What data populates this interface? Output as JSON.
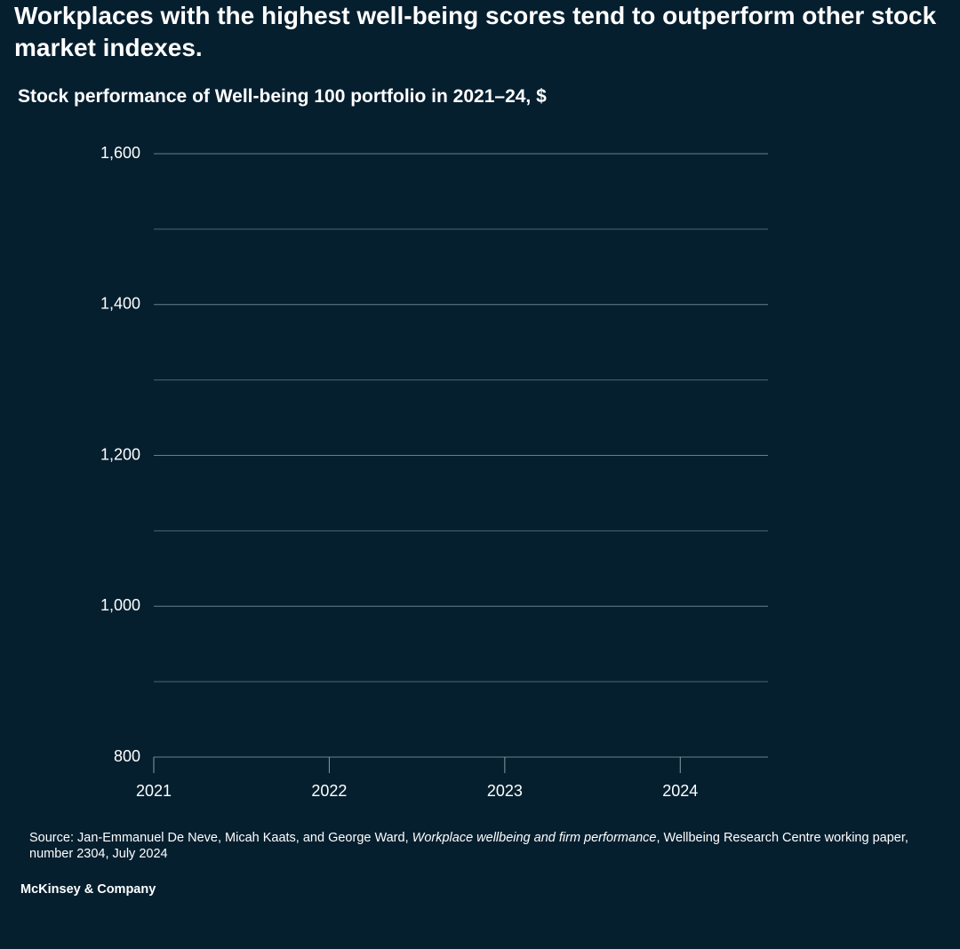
{
  "chart_data": {
    "type": "line",
    "title": "Workplaces with the highest well-being scores tend to outperform other stock market indexes.",
    "subtitle": "Stock performance of Well-being 100 portfolio in 2021–24, $",
    "xlim": [
      2021,
      2024.5
    ],
    "xticks": [
      2021,
      2022,
      2023,
      2024
    ],
    "ylim": [
      800,
      1600
    ],
    "yticks": [
      800,
      {
        "value": 1000,
        "label": "1,000"
      },
      {
        "value": 1200,
        "label": "1,200"
      },
      {
        "value": 1400,
        "label": "1,400"
      },
      {
        "value": 1600,
        "label": "1,600"
      }
    ],
    "minor_yticks": [
      900,
      1100,
      1300,
      1500
    ],
    "grid": true,
    "series": []
  },
  "source": {
    "before": "Source: Jan-Emmanuel De Neve, Micah Kaats, and George Ward, ",
    "italic": "Workplace wellbeing and firm performance",
    "after": ", Wellbeing Research Centre working paper, number 2304, July 2024"
  },
  "footer": "McKinsey & Company"
}
